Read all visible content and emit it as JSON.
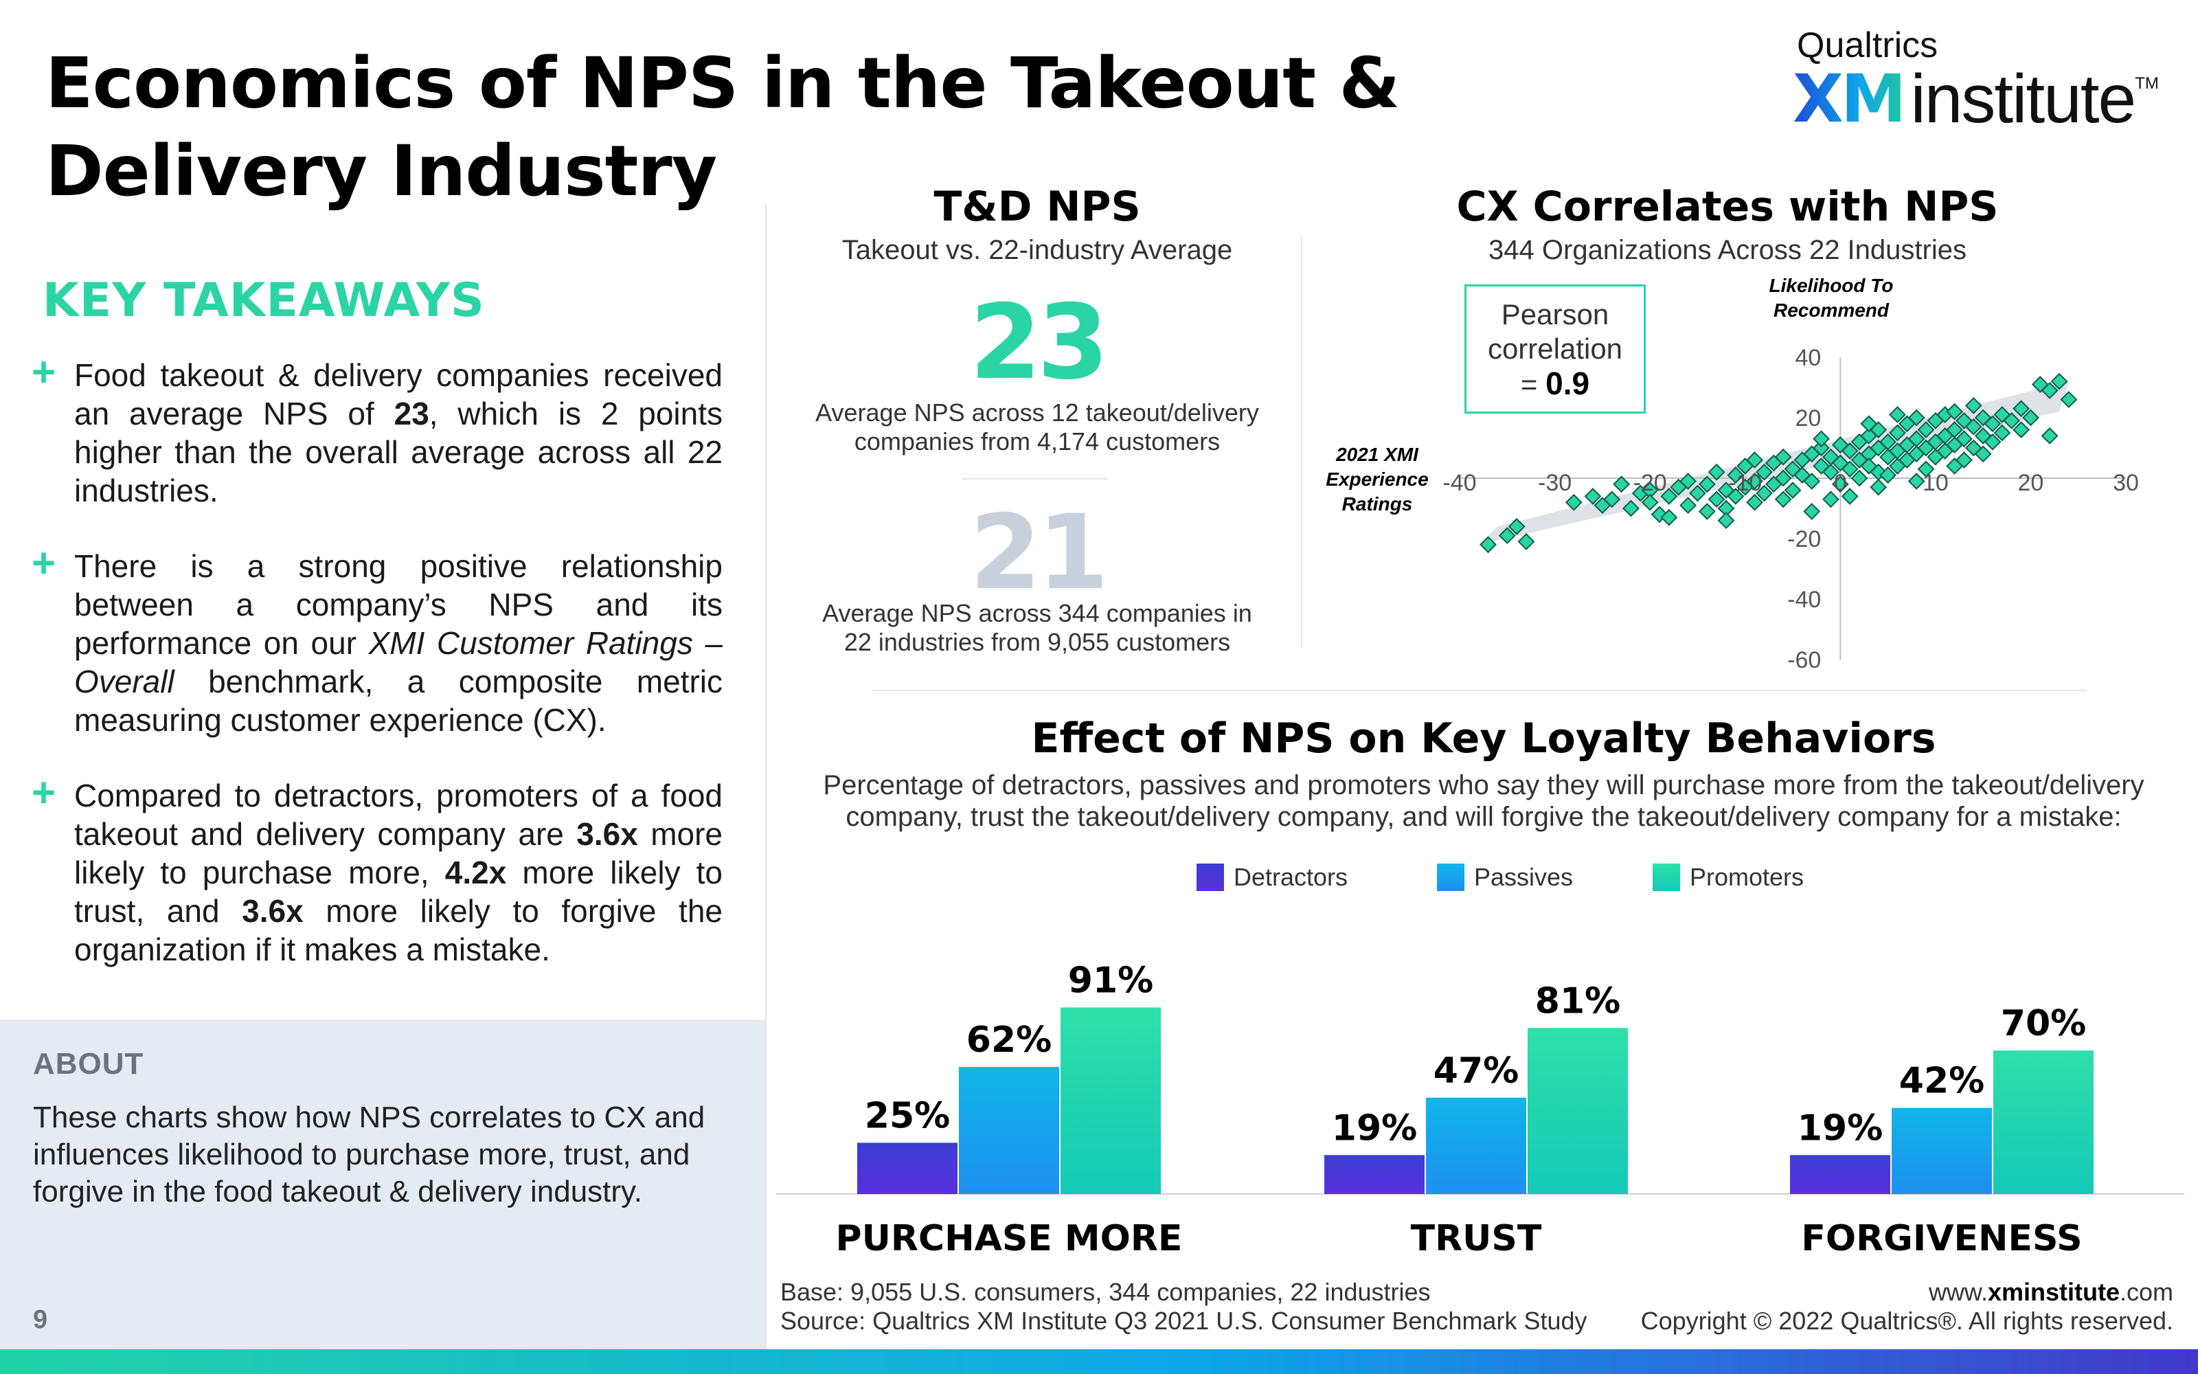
{
  "header": {
    "title": "Economics of NPS in the Takeout & Delivery Industry",
    "logo_top": "Qualtrics",
    "logo_xm": "XM",
    "logo_institute": "institute",
    "logo_tm": "TM"
  },
  "takeaways": {
    "heading": "KEY TAKEAWAYS",
    "plus": "+",
    "b1": {
      "t1": "Food takeout & delivery companies received an average NPS of ",
      "bold1": "23",
      "t2": ", which is 2 points higher than the overall average across all 22 industries."
    },
    "b2": {
      "t1": "There is a strong positive relationship between a company’s NPS and its performance on our ",
      "italic1": "XMI Customer Ratings – Overall",
      "t2": " benchmark, a composite metric measuring customer experience (CX)."
    },
    "b3": {
      "t1": "Compared to detractors, promoters of a food takeout and delivery company are ",
      "bold1": "3.6x",
      "t2": " more likely to purchase more, ",
      "bold2": "4.2x",
      "t3": " more likely to trust, and ",
      "bold3": "3.6x",
      "t4": " more likely to forgive the organization if it makes a mistake."
    }
  },
  "about": {
    "heading": "ABOUT",
    "text": "These charts show how NPS correlates to CX and influences likelihood to purchase more, trust, and forgive in the food takeout & delivery industry."
  },
  "page_number": "9",
  "nps_panel": {
    "title": "T&D NPS",
    "subtitle": "Takeout vs. 22-industry Average",
    "takeout_value": "23",
    "takeout_desc": "Average NPS across 12 takeout/delivery companies from 4,174 customers",
    "industry_value": "21",
    "industry_desc": "Average NPS across 344 companies in 22 industries from 9,055 customers"
  },
  "correlation_panel": {
    "title": "CX Correlates with NPS",
    "subtitle": "344 Organizations Across 22 Industries",
    "pearson_label": "Pearson correlation",
    "pearson_eq": "= ",
    "pearson_value": "0.9"
  },
  "loyalty_panel": {
    "title": "Effect of NPS on Key Loyalty Behaviors",
    "subtitle": "Percentage of detractors, passives and promoters who say they will purchase more from the takeout/delivery company, trust the takeout/delivery company, and will forgive the takeout/delivery company for a mistake:"
  },
  "footer": {
    "base": "Base: 9,055 U.S. consumers, 344 companies, 22 industries",
    "source": "Source: Qualtrics XM Institute Q3 2021 U.S. Consumer Benchmark Study",
    "url_pre": "www.",
    "url_bold": "xminstitute",
    "url_post": ".com",
    "copyright": "Copyright © 2022 Qualtrics®. All rights reserved."
  },
  "colors": {
    "detractors": "#4338ca",
    "passives": "#0ea5e9",
    "promoters": "#22d3a6",
    "accent": "#2bd4a4",
    "nps_secondary": "#c8d1db"
  },
  "chart_data": [
    {
      "type": "scatter",
      "title": "CX Correlates with NPS",
      "subtitle": "344 Organizations Across 22 Industries",
      "xlabel": "2021 XMI Experience Ratings",
      "ylabel": "Likelihood To Recommend",
      "xlim": [
        -40,
        30
      ],
      "ylim": [
        -60,
        40
      ],
      "xticks": [
        -40,
        -30,
        -20,
        -10,
        0,
        10,
        20,
        30
      ],
      "yticks": [
        40,
        20,
        0,
        -20,
        -40,
        -60
      ],
      "pearson_r": 0.9,
      "points": [
        [
          -37,
          -22
        ],
        [
          -34,
          -16
        ],
        [
          -33,
          -21
        ],
        [
          -35,
          -19
        ],
        [
          -28,
          -8
        ],
        [
          -26,
          -6
        ],
        [
          -25,
          -9
        ],
        [
          -24,
          -7
        ],
        [
          -22,
          -10
        ],
        [
          -21,
          -5
        ],
        [
          -20,
          -4
        ],
        [
          -20,
          -8
        ],
        [
          -19,
          -12
        ],
        [
          -18,
          -6
        ],
        [
          -17,
          -3
        ],
        [
          -16,
          -9
        ],
        [
          -15,
          -5
        ],
        [
          -14,
          -11
        ],
        [
          -14,
          -2
        ],
        [
          -13,
          -7
        ],
        [
          -13,
          2
        ],
        [
          -12,
          -4
        ],
        [
          -12,
          -10
        ],
        [
          -11,
          1
        ],
        [
          -11,
          -6
        ],
        [
          -10,
          -3
        ],
        [
          -10,
          4
        ],
        [
          -9,
          -1
        ],
        [
          -9,
          -8
        ],
        [
          -8,
          2
        ],
        [
          -8,
          -5
        ],
        [
          -7,
          5
        ],
        [
          -7,
          -2
        ],
        [
          -6,
          0
        ],
        [
          -6,
          7
        ],
        [
          -5,
          3
        ],
        [
          -5,
          -4
        ],
        [
          -4,
          6
        ],
        [
          -4,
          1
        ],
        [
          -3,
          8
        ],
        [
          -3,
          -1
        ],
        [
          -2,
          4
        ],
        [
          -2,
          10
        ],
        [
          -1,
          2
        ],
        [
          -1,
          7
        ],
        [
          0,
          5
        ],
        [
          0,
          -2
        ],
        [
          0,
          11
        ],
        [
          1,
          3
        ],
        [
          1,
          9
        ],
        [
          2,
          6
        ],
        [
          2,
          12
        ],
        [
          2,
          0
        ],
        [
          3,
          8
        ],
        [
          3,
          14
        ],
        [
          3,
          4
        ],
        [
          4,
          10
        ],
        [
          4,
          2
        ],
        [
          4,
          16
        ],
        [
          5,
          7
        ],
        [
          5,
          12
        ],
        [
          5,
          1
        ],
        [
          6,
          9
        ],
        [
          6,
          15
        ],
        [
          6,
          4
        ],
        [
          7,
          11
        ],
        [
          7,
          18
        ],
        [
          7,
          6
        ],
        [
          8,
          13
        ],
        [
          8,
          8
        ],
        [
          8,
          20
        ],
        [
          9,
          10
        ],
        [
          9,
          16
        ],
        [
          9,
          3
        ],
        [
          10,
          12
        ],
        [
          10,
          19
        ],
        [
          10,
          7
        ],
        [
          11,
          14
        ],
        [
          11,
          21
        ],
        [
          11,
          9
        ],
        [
          12,
          16
        ],
        [
          12,
          11
        ],
        [
          12,
          22
        ],
        [
          13,
          13
        ],
        [
          13,
          19
        ],
        [
          13,
          6
        ],
        [
          14,
          17
        ],
        [
          14,
          10
        ],
        [
          15,
          20
        ],
        [
          15,
          14
        ],
        [
          15,
          8
        ],
        [
          16,
          18
        ],
        [
          16,
          12
        ],
        [
          17,
          21
        ],
        [
          17,
          15
        ],
        [
          18,
          19
        ],
        [
          19,
          23
        ],
        [
          19,
          16
        ],
        [
          20,
          20
        ],
        [
          21,
          31
        ],
        [
          22,
          29
        ],
        [
          23,
          32
        ],
        [
          22,
          14
        ],
        [
          24,
          26
        ],
        [
          -16,
          -1
        ],
        [
          -18,
          -13
        ],
        [
          -6,
          -7
        ],
        [
          -3,
          -11
        ],
        [
          1,
          -6
        ],
        [
          -23,
          -2
        ],
        [
          -2,
          13
        ],
        [
          4,
          -3
        ],
        [
          6,
          21
        ],
        [
          8,
          -1
        ],
        [
          -12,
          -14
        ],
        [
          -9,
          6
        ],
        [
          3,
          18
        ],
        [
          12,
          4
        ],
        [
          -1,
          -7
        ],
        [
          14,
          24
        ]
      ]
    },
    {
      "type": "bar",
      "title": "Effect of NPS on Key Loyalty Behaviors",
      "categories": [
        "PURCHASE MORE",
        "TRUST",
        "FORGIVENESS"
      ],
      "legend_position": "top",
      "ylim": [
        0,
        100
      ],
      "series": [
        {
          "name": "Detractors",
          "values": [
            25,
            19,
            19
          ],
          "labels": [
            "25%",
            "19%",
            "19%"
          ]
        },
        {
          "name": "Passives",
          "values": [
            62,
            47,
            42
          ],
          "labels": [
            "62%",
            "47%",
            "42%"
          ]
        },
        {
          "name": "Promoters",
          "values": [
            91,
            81,
            70
          ],
          "labels": [
            "91%",
            "81%",
            "70%"
          ]
        }
      ]
    }
  ]
}
